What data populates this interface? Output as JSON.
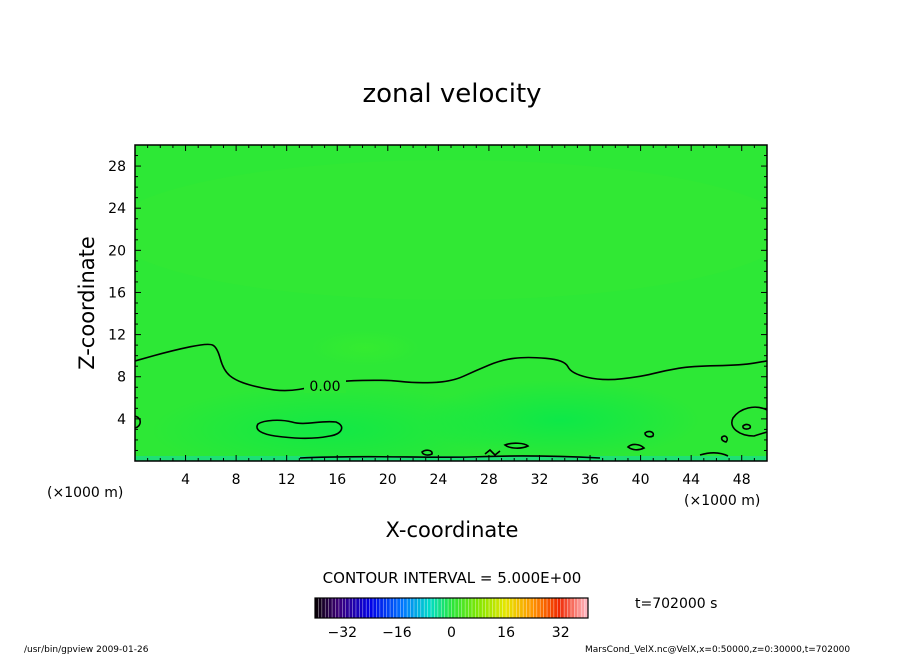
{
  "chart_data": {
    "type": "heatmap",
    "title": "zonal velocity",
    "xlabel": "X-coordinate",
    "ylabel": "Z-coordinate",
    "x_unit_left": "(×1000 m)",
    "x_unit_right": "(×1000 m)",
    "xlim": [
      0,
      50
    ],
    "ylim": [
      0,
      30
    ],
    "x_ticks": [
      4,
      8,
      12,
      16,
      20,
      24,
      28,
      32,
      36,
      40,
      44,
      48
    ],
    "y_ticks": [
      4,
      8,
      12,
      16,
      20,
      24,
      28
    ],
    "contour_label": "0.00",
    "contour_interval_text": "CONTOUR INTERVAL = 5.000E+00",
    "time_text": "t=702000 s",
    "colorbar": {
      "range": [
        -40,
        40
      ],
      "ticks": [
        "−32",
        "−16",
        "0",
        "16",
        "32"
      ],
      "tick_values": [
        -32,
        -16,
        0,
        16,
        32
      ]
    },
    "zero_contour": [
      [
        0,
        9.5
      ],
      [
        3,
        10.5
      ],
      [
        5.8,
        11.2
      ],
      [
        6.5,
        10.8
      ],
      [
        7,
        8.6
      ],
      [
        8,
        7.6
      ],
      [
        10,
        6.9
      ],
      [
        12,
        6.6
      ],
      [
        14,
        7
      ],
      [
        16,
        7.6
      ],
      [
        20,
        7.7
      ],
      [
        22,
        7.4
      ],
      [
        25,
        7.5
      ],
      [
        27,
        8.6
      ],
      [
        29,
        9.6
      ],
      [
        31,
        9.9
      ],
      [
        34,
        9.6
      ],
      [
        34.5,
        8.3
      ],
      [
        37,
        7.6
      ],
      [
        40,
        8
      ],
      [
        42,
        8.6
      ],
      [
        44,
        9
      ],
      [
        48,
        9.1
      ],
      [
        50,
        9.5
      ]
    ],
    "background_value_near": 0
  },
  "footer": {
    "left": "/usr/bin/gpview  2009-01-26",
    "right": "MarsCond_VelX.nc@VelX,x=0:50000,z=0:30000,t=702000"
  }
}
